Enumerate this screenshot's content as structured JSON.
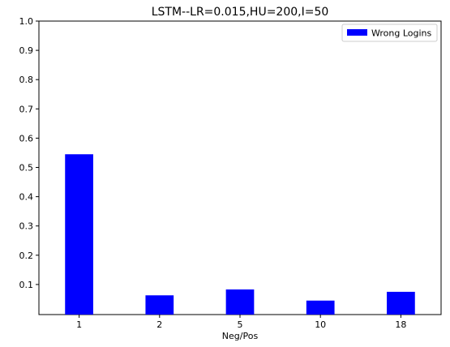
{
  "chart_data": {
    "type": "bar",
    "title": "LSTM--LR=0.015,HU=200,I=50",
    "xlabel": "Neg/Pos",
    "ylabel": "",
    "categories": [
      "1",
      "2",
      "5",
      "10",
      "18"
    ],
    "series": [
      {
        "name": "Wrong Logins",
        "color": "#0000ff",
        "values": [
          0.545,
          0.063,
          0.083,
          0.045,
          0.075
        ]
      }
    ],
    "ylim": [
      0,
      1.0
    ],
    "yticks": [
      0.1,
      0.2,
      0.3,
      0.4,
      0.5,
      0.6,
      0.7,
      0.8,
      0.9,
      1.0
    ],
    "ytick_labels": [
      "0.1",
      "0.2",
      "0.3",
      "0.4",
      "0.5",
      "0.6",
      "0.7",
      "0.8",
      "0.9",
      "1.0"
    ],
    "grid": false,
    "legend_position": "top-right"
  }
}
